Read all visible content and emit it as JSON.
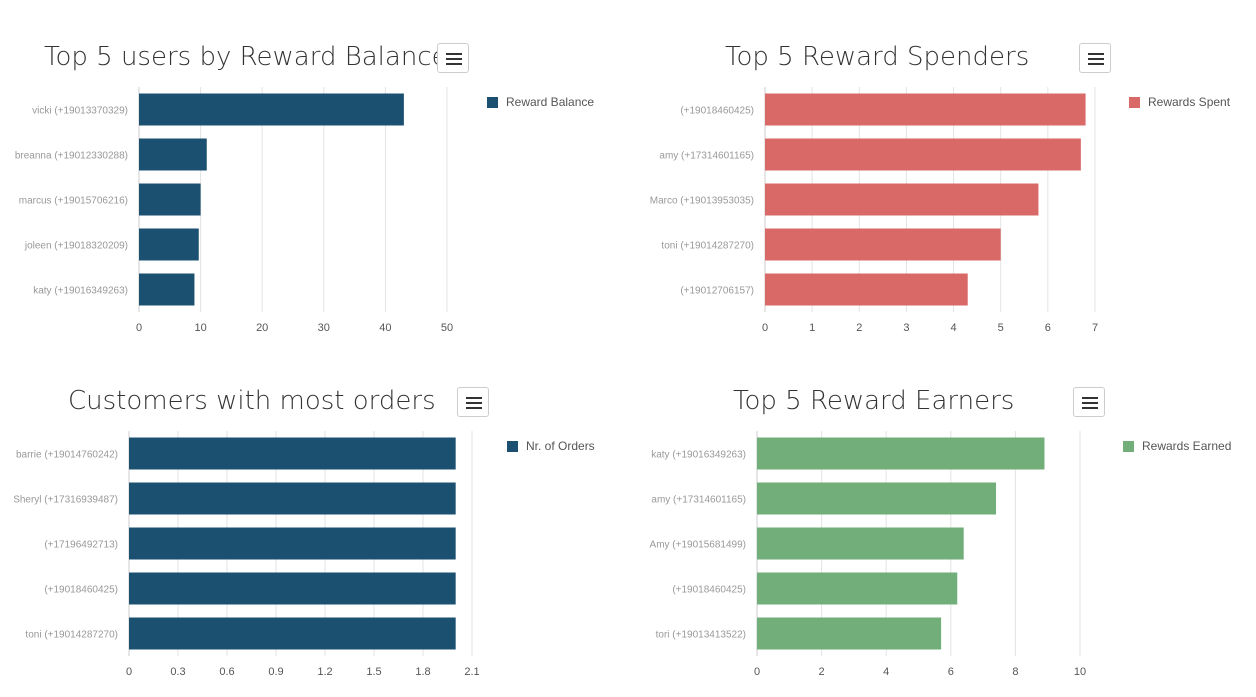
{
  "chart_data": [
    {
      "type": "bar",
      "title": "Top 5 users by Reward Balance",
      "series": [
        {
          "name": "Reward Balance",
          "values": [
            43,
            11,
            10,
            9.7,
            9
          ]
        }
      ],
      "categories": [
        "vicki (+19013370329)",
        "breanna (+19012330288)",
        "marcus (+19015706216)",
        "joleen (+19018320209)",
        "katy (+19016349263)"
      ],
      "xlim": [
        0,
        50
      ],
      "xticks": [
        "0",
        "10",
        "20",
        "30",
        "40",
        "50"
      ],
      "grid": true,
      "legend": "top-right",
      "color": "#1b5070"
    },
    {
      "type": "bar",
      "title": "Top 5 Reward Spenders",
      "series": [
        {
          "name": "Rewards Spent",
          "values": [
            6.8,
            6.7,
            5.8,
            5.0,
            4.3
          ]
        }
      ],
      "categories": [
        "(+19018460425)",
        "amy (+17314601165)",
        "Marco (+19013953035)",
        "toni (+19014287270)",
        "(+19012706157)"
      ],
      "xlim": [
        0,
        7
      ],
      "xticks": [
        "0",
        "1",
        "2",
        "3",
        "4",
        "5",
        "6",
        "7"
      ],
      "grid": true,
      "legend": "top-right",
      "color": "#d96966"
    },
    {
      "type": "bar",
      "title": "Customers with most orders",
      "series": [
        {
          "name": "Nr. of Orders",
          "values": [
            2,
            2,
            2,
            2,
            2
          ]
        }
      ],
      "categories": [
        "barrie (+19014760242)",
        "Sheryl (+17316939487)",
        "(+17196492713)",
        "(+19018460425)",
        "toni (+19014287270)"
      ],
      "xlim": [
        0,
        2.1
      ],
      "xticks": [
        "0",
        "0.3",
        "0.6",
        "0.9",
        "1.2",
        "1.5",
        "1.8",
        "2.1"
      ],
      "grid": true,
      "legend": "top-right",
      "color": "#1b5070"
    },
    {
      "type": "bar",
      "title": "Top 5 Reward Earners",
      "series": [
        {
          "name": "Rewards Earned",
          "values": [
            8.9,
            7.4,
            6.4,
            6.2,
            5.7
          ]
        }
      ],
      "categories": [
        "katy (+19016349263)",
        "amy (+17314601165)",
        "Amy (+19015681499)",
        "(+19018460425)",
        "tori (+19013413522)"
      ],
      "xlim": [
        0,
        10
      ],
      "xticks": [
        "0",
        "2",
        "4",
        "6",
        "8",
        "10"
      ],
      "grid": true,
      "legend": "top-right",
      "color": "#72ae7a"
    }
  ],
  "icons": {
    "menu": "hamburger-menu-icon"
  }
}
